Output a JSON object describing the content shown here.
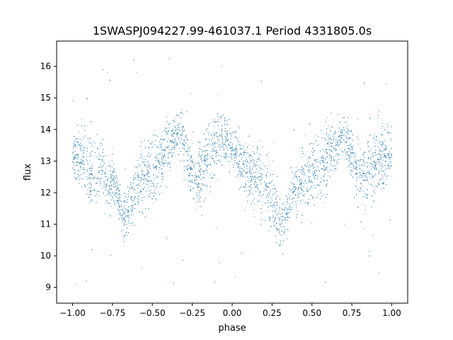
{
  "chart_data": {
    "type": "scatter",
    "title": "1SWASPJ094227.99-461037.1 Period 4331805.0s",
    "xlabel": "phase",
    "ylabel": "flux",
    "xlim": [
      -1.1,
      1.1
    ],
    "ylim": [
      8.5,
      16.8
    ],
    "xticks": [
      -1.0,
      -0.75,
      -0.5,
      -0.25,
      0.0,
      0.25,
      0.5,
      0.75,
      1.0
    ],
    "xtick_labels": [
      "−1.00",
      "−0.75",
      "−0.50",
      "−0.25",
      "0.00",
      "0.25",
      "0.50",
      "0.75",
      "1.00"
    ],
    "yticks": [
      9,
      10,
      11,
      12,
      13,
      14,
      15,
      16
    ],
    "ytick_labels": [
      "9",
      "10",
      "11",
      "12",
      "13",
      "14",
      "15",
      "16"
    ],
    "grid": false,
    "marker_color": "#1f77b4",
    "series": [
      {
        "x": [
          -0.98,
          -0.93,
          -0.88,
          -0.82,
          -0.78,
          -0.73,
          -0.69,
          -0.65,
          -0.61,
          -0.57,
          -0.53,
          -0.48,
          -0.43,
          -0.38,
          -0.34,
          -0.3,
          -0.26,
          -0.22,
          -0.17,
          -0.12,
          -0.07,
          -0.02,
          0.02,
          0.07,
          0.12,
          0.17,
          0.22,
          0.26,
          0.3,
          0.34,
          0.38,
          0.43,
          0.48,
          0.53,
          0.57,
          0.61,
          0.65,
          0.69,
          0.73,
          0.78,
          0.82,
          0.88,
          0.93,
          0.98
        ],
        "y": [
          13.2,
          13.0,
          12.6,
          12.7,
          12.4,
          12.2,
          11.2,
          11.4,
          12.1,
          12.4,
          12.6,
          12.8,
          13.1,
          13.6,
          13.9,
          13.5,
          12.8,
          12.5,
          13.0,
          13.4,
          13.8,
          13.5,
          13.2,
          12.9,
          12.6,
          12.5,
          12.2,
          11.6,
          11.0,
          11.3,
          12.0,
          12.3,
          12.5,
          12.7,
          13.0,
          13.2,
          13.5,
          13.9,
          13.4,
          12.8,
          12.6,
          12.9,
          13.1,
          13.2
        ]
      }
    ]
  }
}
